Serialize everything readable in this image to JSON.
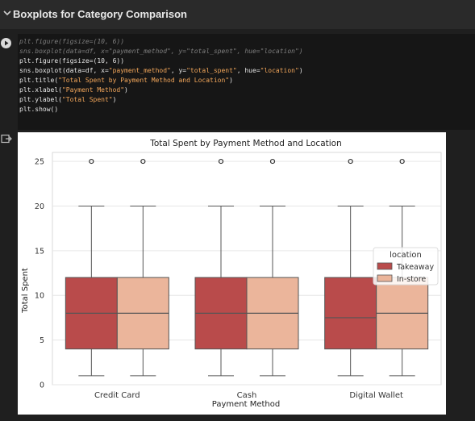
{
  "header": {
    "title": "Boxplots for Category Comparison"
  },
  "code_cell": {
    "lines": [
      {
        "parts": [
          {
            "t": "plt.figure(figsize=(10, 6))",
            "c": "cm"
          }
        ]
      },
      {
        "parts": [
          {
            "t": "sns.boxplot(data=df, x=\"payment_method\", y=\"total_spent\", hue=\"location\")",
            "c": "cm"
          }
        ]
      },
      {
        "parts": [
          {
            "t": "plt.figure(figsize=(10, 6))",
            "c": ""
          }
        ]
      },
      {
        "parts": [
          {
            "t": "sns.boxplot(data=df, x=",
            "c": ""
          },
          {
            "t": "\"payment_method\"",
            "c": "st"
          },
          {
            "t": ", y=",
            "c": ""
          },
          {
            "t": "\"total_spent\"",
            "c": "st"
          },
          {
            "t": ", hue=",
            "c": ""
          },
          {
            "t": "\"location\"",
            "c": "st"
          },
          {
            "t": ")",
            "c": ""
          }
        ]
      },
      {
        "parts": [
          {
            "t": "plt.title(",
            "c": ""
          },
          {
            "t": "\"Total Spent by Payment Method and Location\"",
            "c": "st"
          },
          {
            "t": ")",
            "c": ""
          }
        ]
      },
      {
        "parts": [
          {
            "t": "plt.xlabel(",
            "c": ""
          },
          {
            "t": "\"Payment Method\"",
            "c": "st"
          },
          {
            "t": ")",
            "c": ""
          }
        ]
      },
      {
        "parts": [
          {
            "t": "plt.ylabel(",
            "c": ""
          },
          {
            "t": "\"Total Spent\"",
            "c": "st"
          },
          {
            "t": ")",
            "c": ""
          }
        ]
      },
      {
        "parts": [
          {
            "t": "plt.show()",
            "c": ""
          }
        ]
      }
    ]
  },
  "chart_data": {
    "type": "boxplot",
    "title": "Total Spent by Payment Method and Location",
    "xlabel": "Payment Method",
    "ylabel": "Total Spent",
    "ylim": [
      0,
      26
    ],
    "yticks": [
      0,
      5,
      10,
      15,
      20,
      25
    ],
    "grid": true,
    "categories": [
      "Credit Card",
      "Cash",
      "Digital Wallet"
    ],
    "legend": {
      "title": "location",
      "placement": "center-right"
    },
    "series": [
      {
        "name": "Takeaway",
        "color": "#b94b4b",
        "boxes": [
          {
            "min": 1,
            "q1": 4,
            "median": 8,
            "q3": 12,
            "max": 20,
            "outliers": [
              25
            ]
          },
          {
            "min": 1,
            "q1": 4,
            "median": 8,
            "q3": 12,
            "max": 20,
            "outliers": [
              25
            ]
          },
          {
            "min": 1,
            "q1": 4,
            "median": 7.5,
            "q3": 12,
            "max": 20,
            "outliers": [
              25
            ]
          }
        ]
      },
      {
        "name": "In-store",
        "color": "#ebb59b",
        "boxes": [
          {
            "min": 1,
            "q1": 4,
            "median": 8,
            "q3": 12,
            "max": 20,
            "outliers": [
              25
            ]
          },
          {
            "min": 1,
            "q1": 4,
            "median": 8,
            "q3": 12,
            "max": 20,
            "outliers": [
              25
            ]
          },
          {
            "min": 1,
            "q1": 4,
            "median": 8,
            "q3": 12,
            "max": 20,
            "outliers": [
              25
            ]
          }
        ]
      }
    ]
  }
}
